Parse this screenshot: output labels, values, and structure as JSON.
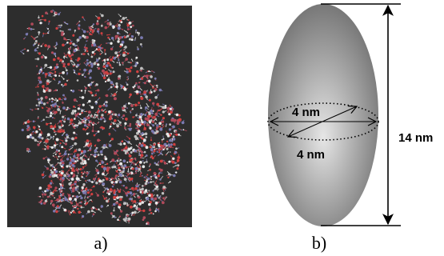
{
  "panel_a": {
    "caption": "a)",
    "background_color": "#2d2d2d",
    "atom_colors": [
      "#c0c0c0",
      "#b04a5a",
      "#d04040",
      "#7a7ab0",
      "#e8e8e8"
    ]
  },
  "panel_b": {
    "caption": "b)",
    "diameter_label_top": "4 nm",
    "diameter_label_bottom": "4 nm",
    "height_label": "14 nm",
    "ellipsoid_light": "#e6e6e6",
    "ellipsoid_dark": "#6e6e6e"
  }
}
